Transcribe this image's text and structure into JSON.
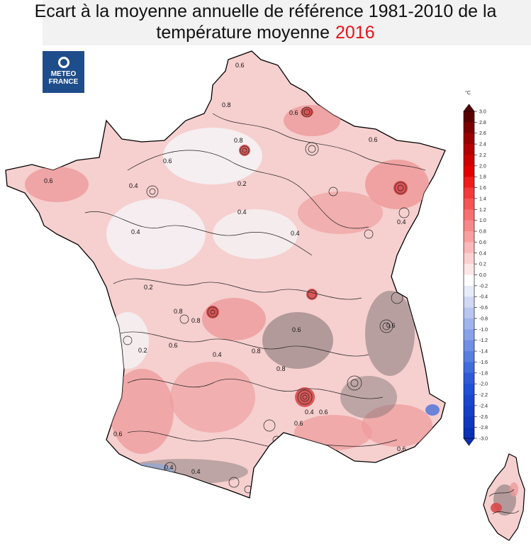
{
  "title": {
    "line1": "Ecart à la moyenne annuelle de référence 1981-2010 de la",
    "line2": "température moyenne",
    "year": "2016",
    "year_color": "#e8141b"
  },
  "logo": {
    "text_line1": "METEO",
    "text_line2": "FRANCE",
    "color": "#1e4d8c"
  },
  "colorbar": {
    "unit": "°C",
    "ticks": [
      "3.0",
      "2.8",
      "2.6",
      "2.4",
      "2.2",
      "2.0",
      "1.8",
      "1.6",
      "1.4",
      "1.2",
      "1.0",
      "0.8",
      "0.6",
      "0.4",
      "0.2",
      "0.0",
      "-0.2",
      "-0.4",
      "-0.6",
      "-0.8",
      "-1.0",
      "-1.2",
      "-1.4",
      "-1.6",
      "-1.8",
      "-2.0",
      "-2.2",
      "-2.4",
      "-2.6",
      "-2.8",
      "-3.0"
    ],
    "colors": [
      "#5a0000",
      "#7a0000",
      "#990000",
      "#b30000",
      "#cc0000",
      "#e00000",
      "#ee1c1c",
      "#f23a3a",
      "#f45555",
      "#f67070",
      "#f78888",
      "#f8a0a0",
      "#fab8b8",
      "#fcd0d0",
      "#fde6e6",
      "#ffffff",
      "#e8ecf8",
      "#d0d8f4",
      "#b8c6f0",
      "#a0b4ec",
      "#88a2e8",
      "#7090e4",
      "#587ee0",
      "#406cdc",
      "#2e5ad8",
      "#2050d4",
      "#1a46cc",
      "#1540c4",
      "#1038bc",
      "#0a30b4"
    ]
  },
  "map": {
    "contour_labels": [
      "0.6",
      "0.8",
      "0.8",
      "0.6",
      "0.4",
      "0.2",
      "0.4",
      "0.4",
      "0.6",
      "0.2",
      "0.4",
      "0.6",
      "0.8",
      "0.6",
      "0.6",
      "0.4",
      "0.4",
      "0.8",
      "0.8",
      "0.6",
      "0.2",
      "0.4",
      "0.6",
      "0.8",
      "0.6",
      "0.4",
      "0.6",
      "0.4",
      "0.6",
      "0.6"
    ],
    "colors": {
      "base": "#f6cfcf",
      "warm": "#ee9a9a",
      "hot": "#d84a4a",
      "cool": "#f5f2f4",
      "relief": "#7a7070"
    }
  }
}
